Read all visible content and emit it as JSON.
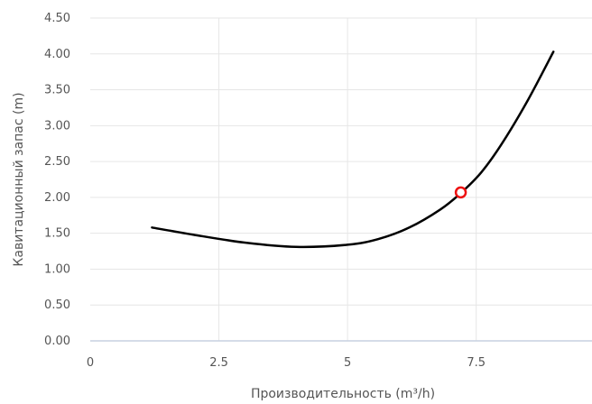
{
  "chart_data": {
    "type": "line",
    "xlabel": "Производительность (m³/h)",
    "ylabel": "Кавитационный запас (m)",
    "xlim": [
      0,
      9.75
    ],
    "ylim": [
      0,
      4.5
    ],
    "x_ticks": [
      "0",
      "2.5",
      "5",
      "7.5"
    ],
    "x_tick_values": [
      0,
      2.5,
      5,
      7.5
    ],
    "y_ticks": [
      "0.00",
      "0.50",
      "1.00",
      "1.50",
      "2.00",
      "2.50",
      "3.00",
      "3.50",
      "4.00",
      "4.50"
    ],
    "y_tick_values": [
      0,
      0.5,
      1.0,
      1.5,
      2.0,
      2.5,
      3.0,
      3.5,
      4.0,
      4.5
    ],
    "grid": true,
    "series": [
      {
        "color": "#000000",
        "x": [
          1.2,
          2.0,
          3.0,
          4.0,
          5.0,
          5.6,
          6.2,
          6.8,
          7.2,
          7.6,
          8.0,
          8.5,
          9.0
        ],
        "y": [
          1.58,
          1.48,
          1.37,
          1.31,
          1.34,
          1.42,
          1.58,
          1.83,
          2.06,
          2.35,
          2.75,
          3.35,
          4.03
        ]
      }
    ],
    "marker": {
      "x": 7.2,
      "y": 2.07,
      "color": "#ee1111"
    }
  }
}
